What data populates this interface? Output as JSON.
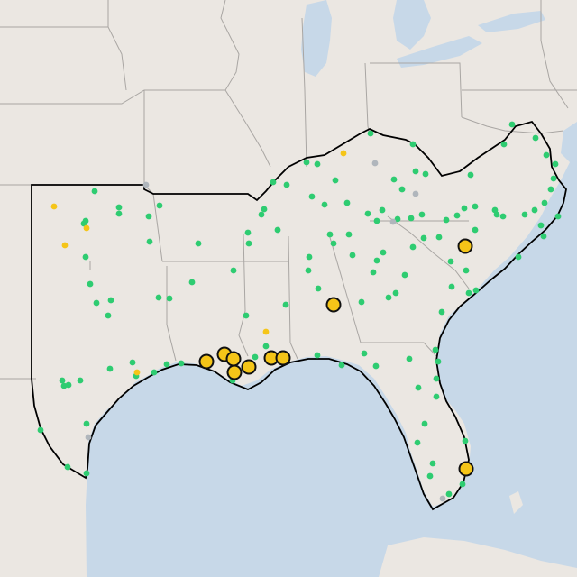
{
  "map": {
    "basemap": "light-gray-canvas",
    "colors": {
      "land": "#ebe7e2",
      "water": "#c7d8e8",
      "state_border": "#a9a6a3",
      "region_outline": "#000000",
      "marker_green": "#2ecc71",
      "marker_yellow": "#f5c518",
      "marker_gray": "#b0b6bc",
      "large_marker_fill": "#f5c518",
      "large_marker_stroke": "#111111"
    },
    "legend": null
  },
  "markers": {
    "large_yellow": [
      {
        "id": "ga-central"
      },
      {
        "id": "sc-central"
      },
      {
        "id": "la-sw-1"
      },
      {
        "id": "la-sw-2"
      },
      {
        "id": "la-sw-3"
      },
      {
        "id": "la-sw-4"
      },
      {
        "id": "la-sw-5"
      },
      {
        "id": "la-se-1"
      },
      {
        "id": "la-se-2"
      },
      {
        "id": "fl-se"
      }
    ]
  }
}
